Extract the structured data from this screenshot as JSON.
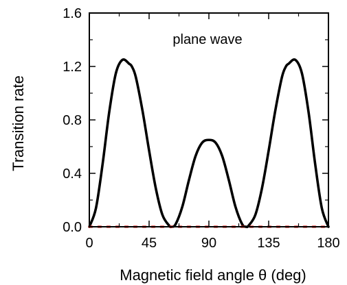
{
  "chart_data": {
    "type": "line",
    "xlabel": "Magnetic field angle  θ (deg)",
    "ylabel": "Transition rate",
    "annotation": "plane wave",
    "xlim": [
      0,
      180
    ],
    "ylim": [
      0,
      1.6
    ],
    "xticks": [
      "0",
      "45",
      "90",
      "135",
      "180"
    ],
    "yticks": [
      "0.0",
      "0.4",
      "0.8",
      "1.2",
      "1.6"
    ],
    "grid": false,
    "series": [
      {
        "color": "#000000",
        "style": "solid",
        "x": [
          0,
          5,
          10,
          15,
          20,
          25,
          30,
          32,
          35,
          40,
          45,
          50,
          55,
          60,
          62,
          65,
          70,
          75,
          80,
          85,
          90,
          95,
          100,
          105,
          110,
          115,
          118,
          120,
          125,
          130,
          135,
          140,
          145,
          148,
          150,
          155,
          160,
          165,
          170,
          175,
          180
        ],
        "y": [
          0.0,
          0.14,
          0.47,
          0.86,
          1.15,
          1.25,
          1.22,
          1.2,
          1.12,
          0.87,
          0.57,
          0.29,
          0.09,
          0.01,
          0.0,
          0.02,
          0.15,
          0.35,
          0.53,
          0.63,
          0.65,
          0.63,
          0.53,
          0.35,
          0.15,
          0.02,
          0.0,
          0.01,
          0.09,
          0.29,
          0.57,
          0.87,
          1.12,
          1.2,
          1.22,
          1.25,
          1.15,
          0.86,
          0.47,
          0.14,
          0.0
        ]
      },
      {
        "color": "#e8231c",
        "style": "dotted",
        "x": [
          0,
          180
        ],
        "y": [
          0.0,
          0.0
        ]
      }
    ]
  }
}
